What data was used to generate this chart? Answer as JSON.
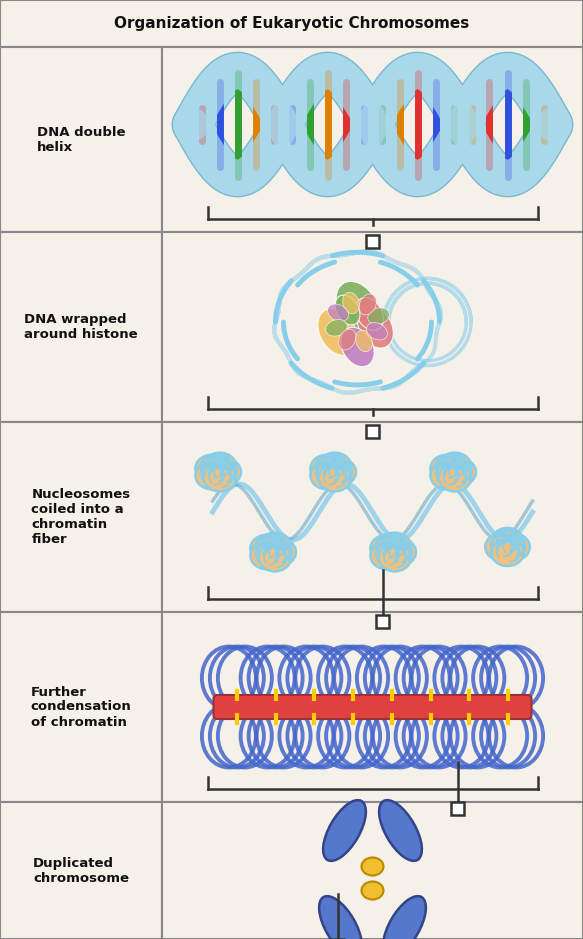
{
  "title": "Organization of Eukaryotic Chromosomes",
  "background_color": "#f5f0e8",
  "border_color": "#888888",
  "rows": [
    {
      "label": "DNA double\nhelix"
    },
    {
      "label": "DNA wrapped\naround histone"
    },
    {
      "label": "Nucleosomes\ncoiled into a\nchromatin\nfiber"
    },
    {
      "label": "Further\ncondensation\nof chromatin"
    },
    {
      "label": "Duplicated\nchromosome"
    }
  ],
  "title_fontsize": 11,
  "label_fontsize": 9.5,
  "dna_ribbon_color": "#a8d8ea",
  "dna_ribbon_edge": "#7ab8d0",
  "bp_colors": [
    "#e03030",
    "#3050e0",
    "#30a030",
    "#e08000"
  ],
  "nucleosome_bead_color": "#f0c080",
  "nucleosome_stripe_color": "#87ceeb",
  "histone_colors": [
    "#80b060",
    "#e08080",
    "#f0c060",
    "#c080c0"
  ],
  "dna_wrap_color": "#87ceeb",
  "condensed_loop_color": "#4466cc",
  "scaffold_color": "#e04040",
  "scaffold_attach_color": "#ffcc00",
  "chrom_color": "#5577cc",
  "chrom_edge_color": "#334488",
  "centromere_color": "#f0c030",
  "connector_color": "#333333"
}
